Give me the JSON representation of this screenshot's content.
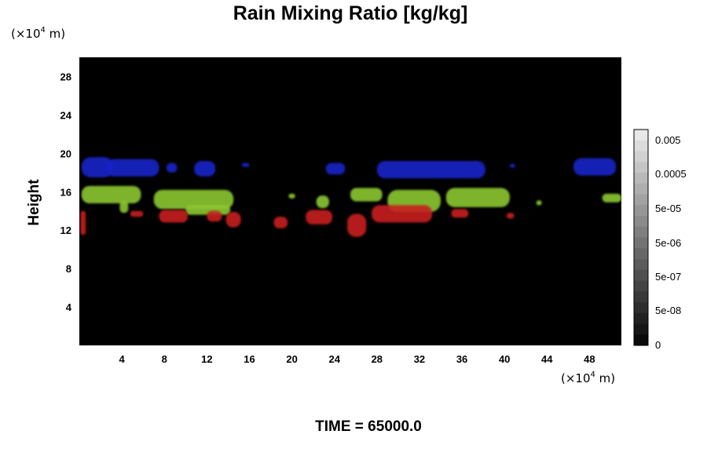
{
  "chart_data": {
    "type": "heatmap",
    "title": "Rain Mixing Ratio [kg/kg]",
    "ylabel": "Height",
    "x_unit": "(×10",
    "x_unit_exp": "4",
    "x_unit_tail": " m)",
    "y_unit": "(×10",
    "y_unit_exp": "4",
    "y_unit_tail": " m)",
    "xlim": [
      0,
      51
    ],
    "ylim": [
      0,
      30
    ],
    "x_ticks": [
      4,
      8,
      12,
      16,
      20,
      24,
      28,
      32,
      36,
      40,
      44,
      48
    ],
    "y_ticks": [
      4,
      8,
      12,
      16,
      20,
      24,
      28
    ],
    "background": "#000000",
    "colorbar": {
      "labels": [
        "0.005",
        "0.0005",
        "5e-05",
        "5e-06",
        "5e-07",
        "5e-08",
        "0"
      ]
    },
    "bands": [
      {
        "color": "#1a22c8",
        "blobs": [
          {
            "x": [
              0.2,
              3.2
            ],
            "y": [
              17.5,
              19.6
            ]
          },
          {
            "x": [
              2.5,
              7.5
            ],
            "y": [
              17.6,
              19.4
            ]
          },
          {
            "x": [
              8.2,
              9.2
            ],
            "y": [
              18.0,
              19.0
            ]
          },
          {
            "x": [
              10.8,
              12.8
            ],
            "y": [
              17.6,
              19.2
            ]
          },
          {
            "x": [
              15.3,
              16.0
            ],
            "y": [
              18.6,
              19.0
            ]
          },
          {
            "x": [
              23.2,
              25.0
            ],
            "y": [
              17.8,
              19.0
            ]
          },
          {
            "x": [
              28.0,
              38.2
            ],
            "y": [
              17.4,
              19.2
            ]
          },
          {
            "x": [
              40.5,
              41.0
            ],
            "y": [
              18.5,
              18.9
            ]
          },
          {
            "x": [
              46.5,
              50.5
            ],
            "y": [
              17.7,
              19.5
            ]
          }
        ]
      },
      {
        "color": "#8cc832",
        "blobs": [
          {
            "x": [
              0.2,
              5.8
            ],
            "y": [
              14.8,
              16.6
            ]
          },
          {
            "x": [
              3.8,
              4.6
            ],
            "y": [
              13.8,
              15.0
            ]
          },
          {
            "x": [
              7.0,
              14.5
            ],
            "y": [
              14.2,
              16.2
            ]
          },
          {
            "x": [
              10.0,
              14.2
            ],
            "y": [
              13.6,
              14.6
            ]
          },
          {
            "x": [
              19.7,
              20.3
            ],
            "y": [
              15.3,
              15.8
            ]
          },
          {
            "x": [
              22.3,
              23.5
            ],
            "y": [
              14.3,
              15.6
            ]
          },
          {
            "x": [
              25.5,
              28.5
            ],
            "y": [
              15.0,
              16.4
            ]
          },
          {
            "x": [
              29.0,
              34.0
            ],
            "y": [
              13.9,
              16.2
            ]
          },
          {
            "x": [
              34.5,
              40.5
            ],
            "y": [
              14.4,
              16.4
            ]
          },
          {
            "x": [
              43.0,
              43.5
            ],
            "y": [
              14.6,
              15.1
            ]
          },
          {
            "x": [
              49.2,
              51.0
            ],
            "y": [
              14.9,
              15.8
            ]
          }
        ]
      },
      {
        "color": "#c81e1e",
        "blobs": [
          {
            "x": [
              0.1,
              0.6
            ],
            "y": [
              11.5,
              14.0
            ]
          },
          {
            "x": [
              4.8,
              6.0
            ],
            "y": [
              13.4,
              14.0
            ]
          },
          {
            "x": [
              7.5,
              10.2
            ],
            "y": [
              12.8,
              14.1
            ]
          },
          {
            "x": [
              12.0,
              13.4
            ],
            "y": [
              12.9,
              14.0
            ]
          },
          {
            "x": [
              13.8,
              15.2
            ],
            "y": [
              12.3,
              13.9
            ]
          },
          {
            "x": [
              18.3,
              19.6
            ],
            "y": [
              12.2,
              13.4
            ]
          },
          {
            "x": [
              21.3,
              23.8
            ],
            "y": [
              12.6,
              14.1
            ]
          },
          {
            "x": [
              25.2,
              27.0
            ],
            "y": [
              11.3,
              13.7
            ]
          },
          {
            "x": [
              27.5,
              33.2
            ],
            "y": [
              12.8,
              14.6
            ]
          },
          {
            "x": [
              35.0,
              36.6
            ],
            "y": [
              13.3,
              14.2
            ]
          },
          {
            "x": [
              40.2,
              40.9
            ],
            "y": [
              13.2,
              13.8
            ]
          }
        ]
      }
    ]
  },
  "footer": {
    "time_label": "TIME = 65000.0"
  }
}
